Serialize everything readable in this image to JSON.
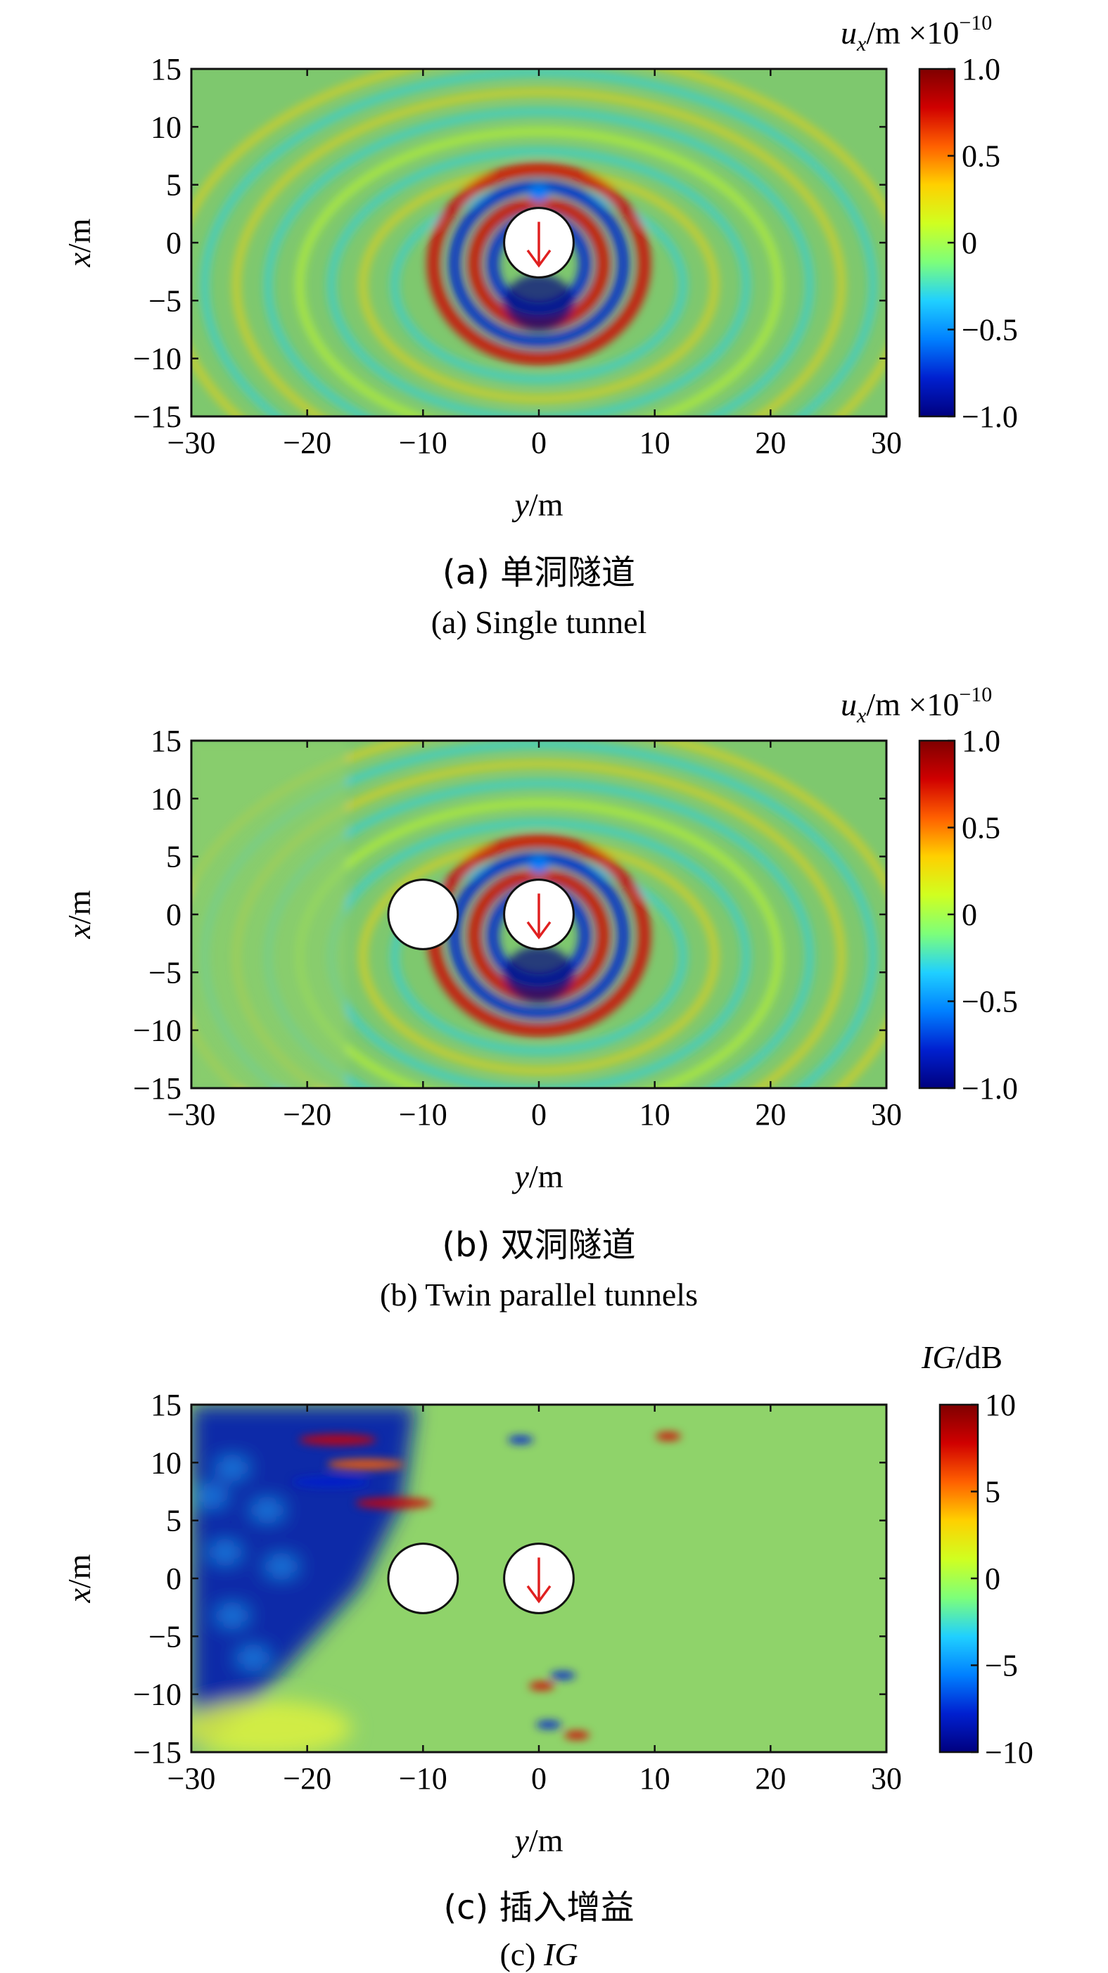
{
  "colors": {
    "jet": [
      "#00007f",
      "#0020d0",
      "#0080ff",
      "#20d0ff",
      "#7dff7a",
      "#d0ff20",
      "#ffd000",
      "#ff6000",
      "#d00000",
      "#7f0000"
    ],
    "field": "#7ec86e",
    "tunnel_fill": "#ffffff",
    "arrow": "#e02020"
  },
  "chart_data": [
    {
      "type": "heatmap",
      "field": "u_x displacement",
      "xlabel_main": "y",
      "xlabel_unit": "/m",
      "ylabel_main": "x",
      "ylabel_unit": "/m",
      "xlim": [
        -30,
        30
      ],
      "ylim": [
        -15,
        15
      ],
      "xticks": [
        -30,
        -20,
        -10,
        0,
        10,
        20,
        30
      ],
      "yticks": [
        15,
        10,
        5,
        0,
        -5,
        -10,
        -15
      ],
      "xtick_labels": [
        "−30",
        "−20",
        "−10",
        "0",
        "10",
        "20",
        "30"
      ],
      "ytick_labels": [
        "15",
        "10",
        "5",
        "0",
        "−5",
        "−10",
        "−15"
      ],
      "colorbar": {
        "label_main": "u",
        "label_sub": "x",
        "label_unit": "/m ×10",
        "label_exp": "−10",
        "range": [
          -1.0,
          1.0
        ],
        "ticks": [
          1.0,
          0.5,
          0,
          -0.5,
          -1.0
        ],
        "tick_labels": [
          "1.0",
          "0.5",
          "0",
          "−0.5",
          "−1.0"
        ]
      },
      "tunnels": [
        {
          "y": 0,
          "x": 0,
          "radius": 3,
          "source": true
        }
      ],
      "caption_cn": "(a) 单洞隧道",
      "caption_en": "(a) Single tunnel"
    },
    {
      "type": "heatmap",
      "field": "u_x displacement",
      "xlabel_main": "y",
      "xlabel_unit": "/m",
      "ylabel_main": "x",
      "ylabel_unit": "/m",
      "xlim": [
        -30,
        30
      ],
      "ylim": [
        -15,
        15
      ],
      "xticks": [
        -30,
        -20,
        -10,
        0,
        10,
        20,
        30
      ],
      "yticks": [
        15,
        10,
        5,
        0,
        -5,
        -10,
        -15
      ],
      "xtick_labels": [
        "−30",
        "−20",
        "−10",
        "0",
        "10",
        "20",
        "30"
      ],
      "ytick_labels": [
        "15",
        "10",
        "5",
        "0",
        "−5",
        "−10",
        "−15"
      ],
      "colorbar": {
        "label_main": "u",
        "label_sub": "x",
        "label_unit": "/m ×10",
        "label_exp": "−10",
        "range": [
          -1.0,
          1.0
        ],
        "ticks": [
          1.0,
          0.5,
          0,
          -0.5,
          -1.0
        ],
        "tick_labels": [
          "1.0",
          "0.5",
          "0",
          "−0.5",
          "−1.0"
        ]
      },
      "tunnels": [
        {
          "y": -10,
          "x": 0,
          "radius": 3,
          "source": false
        },
        {
          "y": 0,
          "x": 0,
          "radius": 3,
          "source": true
        }
      ],
      "caption_cn": "(b) 双洞隧道",
      "caption_en": "(b) Twin parallel tunnels"
    },
    {
      "type": "heatmap",
      "field": "insertion gain",
      "xlabel_main": "y",
      "xlabel_unit": "/m",
      "ylabel_main": "x",
      "ylabel_unit": "/m",
      "xlim": [
        -30,
        30
      ],
      "ylim": [
        -15,
        15
      ],
      "xticks": [
        -30,
        -20,
        -10,
        0,
        10,
        20,
        30
      ],
      "yticks": [
        15,
        10,
        5,
        0,
        -5,
        -10,
        -15
      ],
      "xtick_labels": [
        "−30",
        "−20",
        "−10",
        "0",
        "10",
        "20",
        "30"
      ],
      "ytick_labels": [
        "15",
        "10",
        "5",
        "0",
        "−5",
        "−10",
        "−15"
      ],
      "colorbar": {
        "label_main": "IG",
        "label_sub": "",
        "label_unit": "/dB",
        "label_exp": "",
        "range": [
          -10,
          10
        ],
        "ticks": [
          10,
          5,
          0,
          -5,
          -10
        ],
        "tick_labels": [
          "10",
          "5",
          "0",
          "−5",
          "−10"
        ]
      },
      "tunnels": [
        {
          "y": -10,
          "x": 0,
          "radius": 3,
          "source": false
        },
        {
          "y": 0,
          "x": 0,
          "radius": 3,
          "source": true
        }
      ],
      "caption_cn": "(c) 插入增益",
      "caption_en_prefix": "(c) ",
      "caption_en_italic": "IG"
    }
  ]
}
